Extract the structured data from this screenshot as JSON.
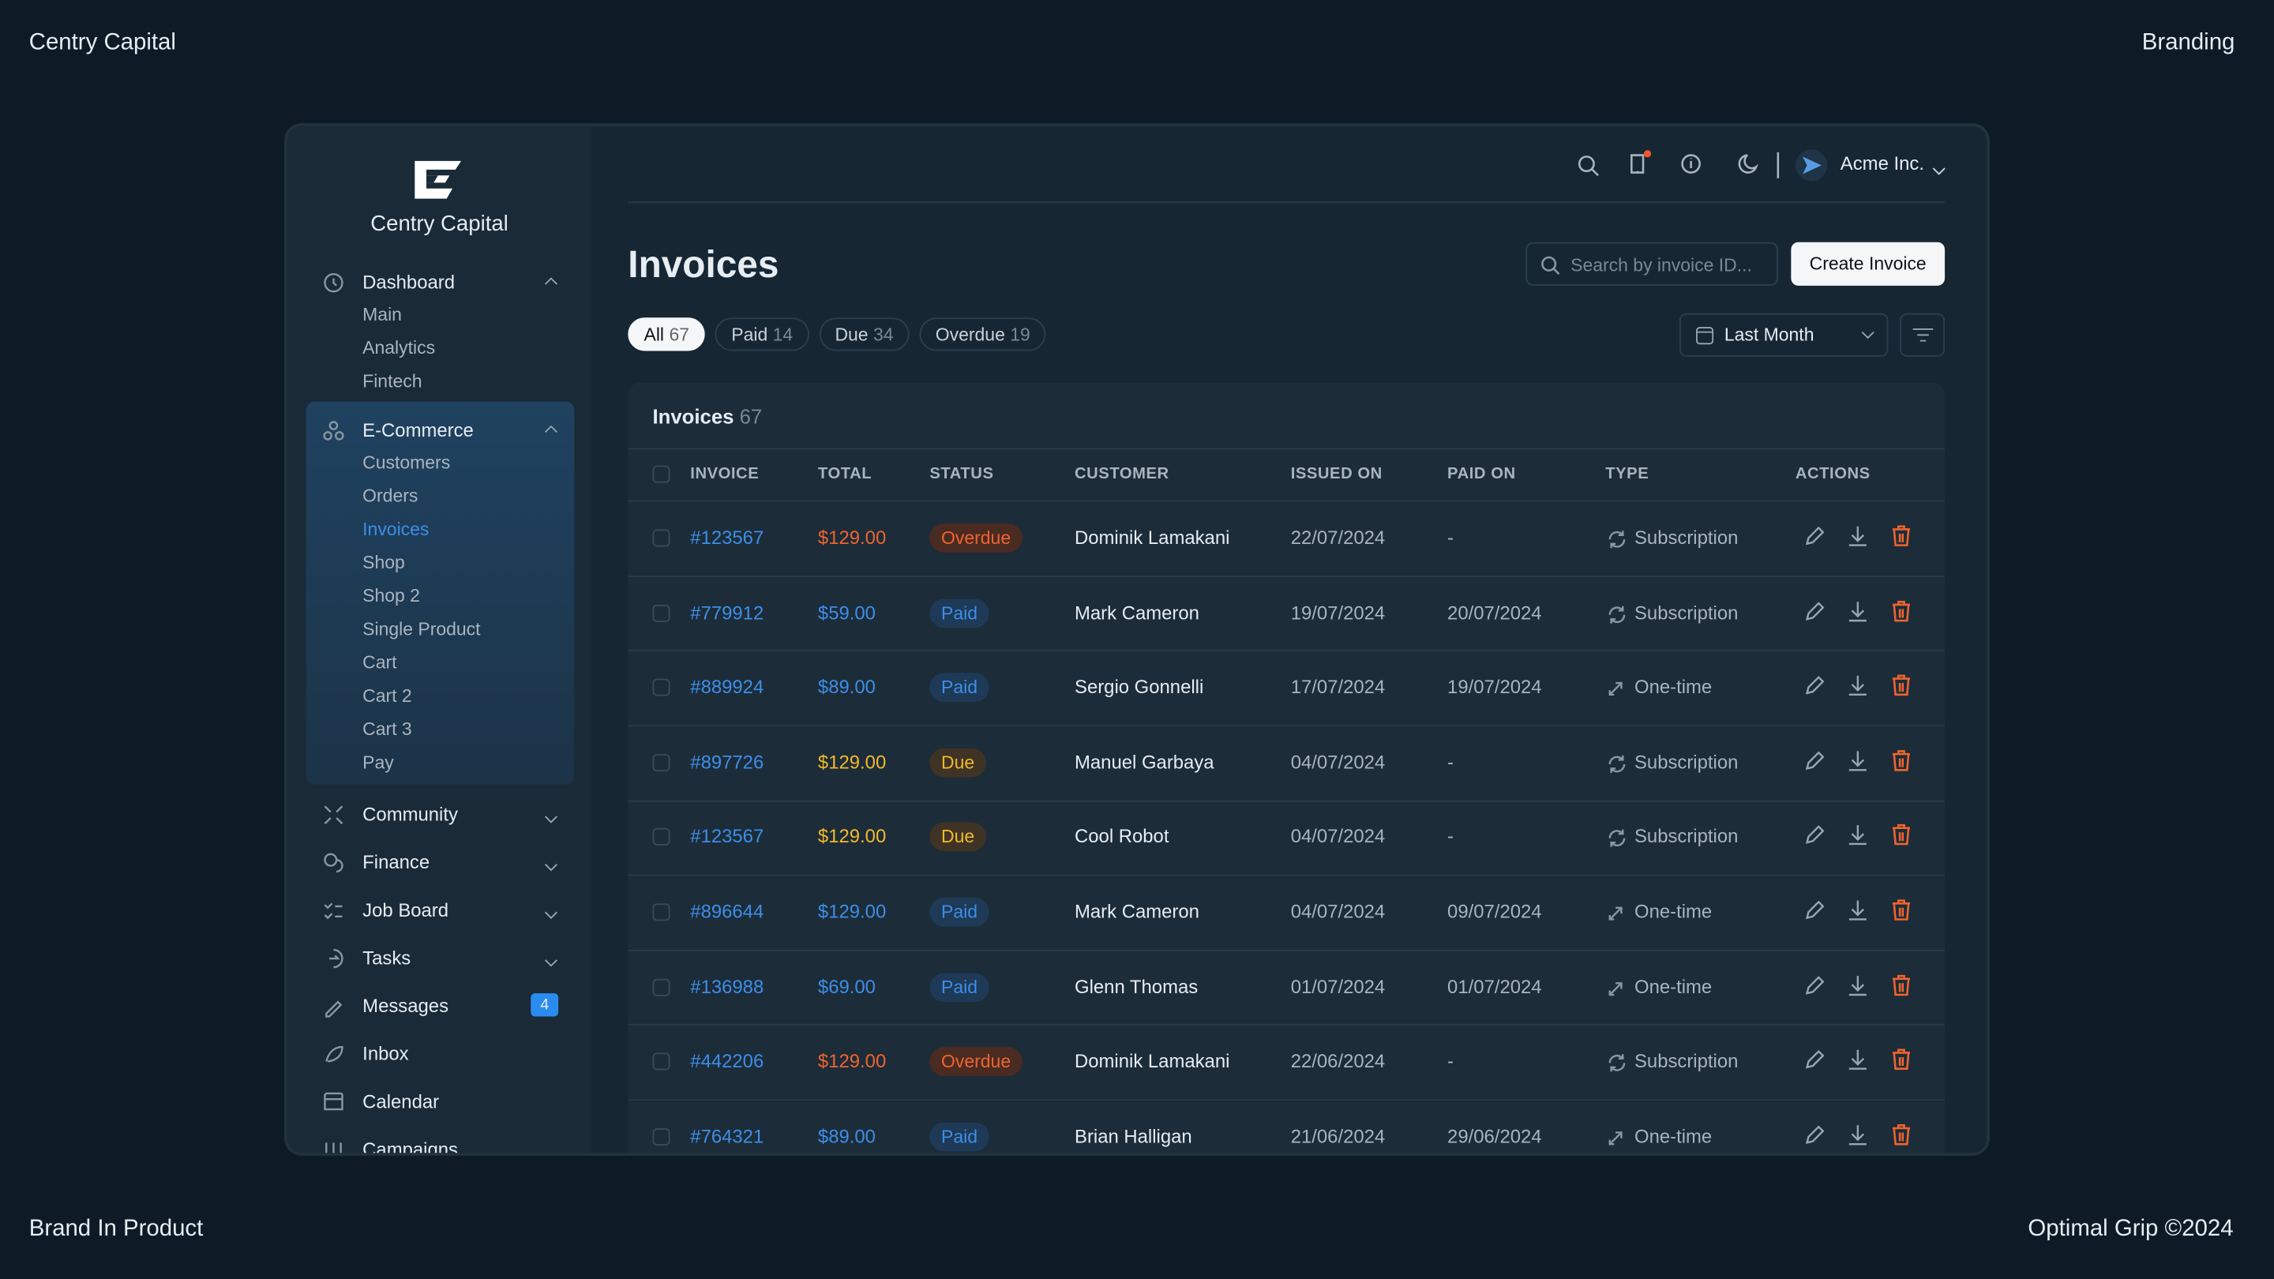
{
  "corners": {
    "top_left": "Centry Capital",
    "top_right": "Branding",
    "bottom_left": "Brand In Product",
    "bottom_right": "Optimal Grip ©2024"
  },
  "sidebar": {
    "brand": "Centry Capital",
    "groups": [
      {
        "label": "Dashboard",
        "items": [
          {
            "label": "Main"
          },
          {
            "label": "Analytics"
          },
          {
            "label": "Fintech"
          }
        ]
      },
      {
        "label": "E-Commerce",
        "selected": true,
        "items": [
          {
            "label": "Customers"
          },
          {
            "label": "Orders"
          },
          {
            "label": "Invoices",
            "selected": true
          },
          {
            "label": "Shop"
          },
          {
            "label": "Shop 2"
          },
          {
            "label": "Single Product"
          },
          {
            "label": "Cart"
          },
          {
            "label": "Cart 2"
          },
          {
            "label": "Cart 3"
          },
          {
            "label": "Pay"
          }
        ]
      }
    ],
    "nav": [
      {
        "label": "Community",
        "expandable": true
      },
      {
        "label": "Finance",
        "expandable": true
      },
      {
        "label": "Job Board",
        "expandable": true
      },
      {
        "label": "Tasks",
        "expandable": true
      },
      {
        "label": "Messages",
        "badge": 4
      },
      {
        "label": "Inbox"
      },
      {
        "label": "Calendar"
      },
      {
        "label": "Campaigns"
      }
    ]
  },
  "topbar": {
    "account": "Acme Inc."
  },
  "page": {
    "title": "Invoices",
    "search_placeholder": "Search by invoice ID...",
    "create_button": "Create Invoice",
    "filters": [
      {
        "label": "All",
        "count": 67,
        "selected": true
      },
      {
        "label": "Paid",
        "count": 14
      },
      {
        "label": "Due",
        "count": 34
      },
      {
        "label": "Overdue",
        "count": 19
      }
    ],
    "period": "Last Month"
  },
  "table": {
    "title": "Invoices",
    "count": 67,
    "columns": [
      "INVOICE",
      "TOTAL",
      "STATUS",
      "CUSTOMER",
      "ISSUED ON",
      "PAID ON",
      "TYPE",
      "ACTIONS"
    ],
    "rows": [
      {
        "invoice": "#123567",
        "total": "$129.00",
        "status": "Overdue",
        "customer": "Dominik Lamakani",
        "issued": "22/07/2024",
        "paid": "-",
        "type": "Subscription"
      },
      {
        "invoice": "#779912",
        "total": "$59.00",
        "status": "Paid",
        "customer": "Mark Cameron",
        "issued": "19/07/2024",
        "paid": "20/07/2024",
        "type": "Subscription"
      },
      {
        "invoice": "#889924",
        "total": "$89.00",
        "status": "Paid",
        "customer": "Sergio Gonnelli",
        "issued": "17/07/2024",
        "paid": "19/07/2024",
        "type": "One-time"
      },
      {
        "invoice": "#897726",
        "total": "$129.00",
        "status": "Due",
        "customer": "Manuel Garbaya",
        "issued": "04/07/2024",
        "paid": "-",
        "type": "Subscription"
      },
      {
        "invoice": "#123567",
        "total": "$129.00",
        "status": "Due",
        "customer": "Cool Robot",
        "issued": "04/07/2024",
        "paid": "-",
        "type": "Subscription"
      },
      {
        "invoice": "#896644",
        "total": "$129.00",
        "status": "Paid",
        "customer": "Mark Cameron",
        "issued": "04/07/2024",
        "paid": "09/07/2024",
        "type": "One-time"
      },
      {
        "invoice": "#136988",
        "total": "$69.00",
        "status": "Paid",
        "customer": "Glenn Thomas",
        "issued": "01/07/2024",
        "paid": "01/07/2024",
        "type": "One-time"
      },
      {
        "invoice": "#442206",
        "total": "$129.00",
        "status": "Overdue",
        "customer": "Dominik Lamakani",
        "issued": "22/06/2024",
        "paid": "-",
        "type": "Subscription"
      },
      {
        "invoice": "#764321",
        "total": "$89.00",
        "status": "Paid",
        "customer": "Brian Halligan",
        "issued": "21/06/2024",
        "paid": "29/06/2024",
        "type": "One-time"
      }
    ]
  }
}
